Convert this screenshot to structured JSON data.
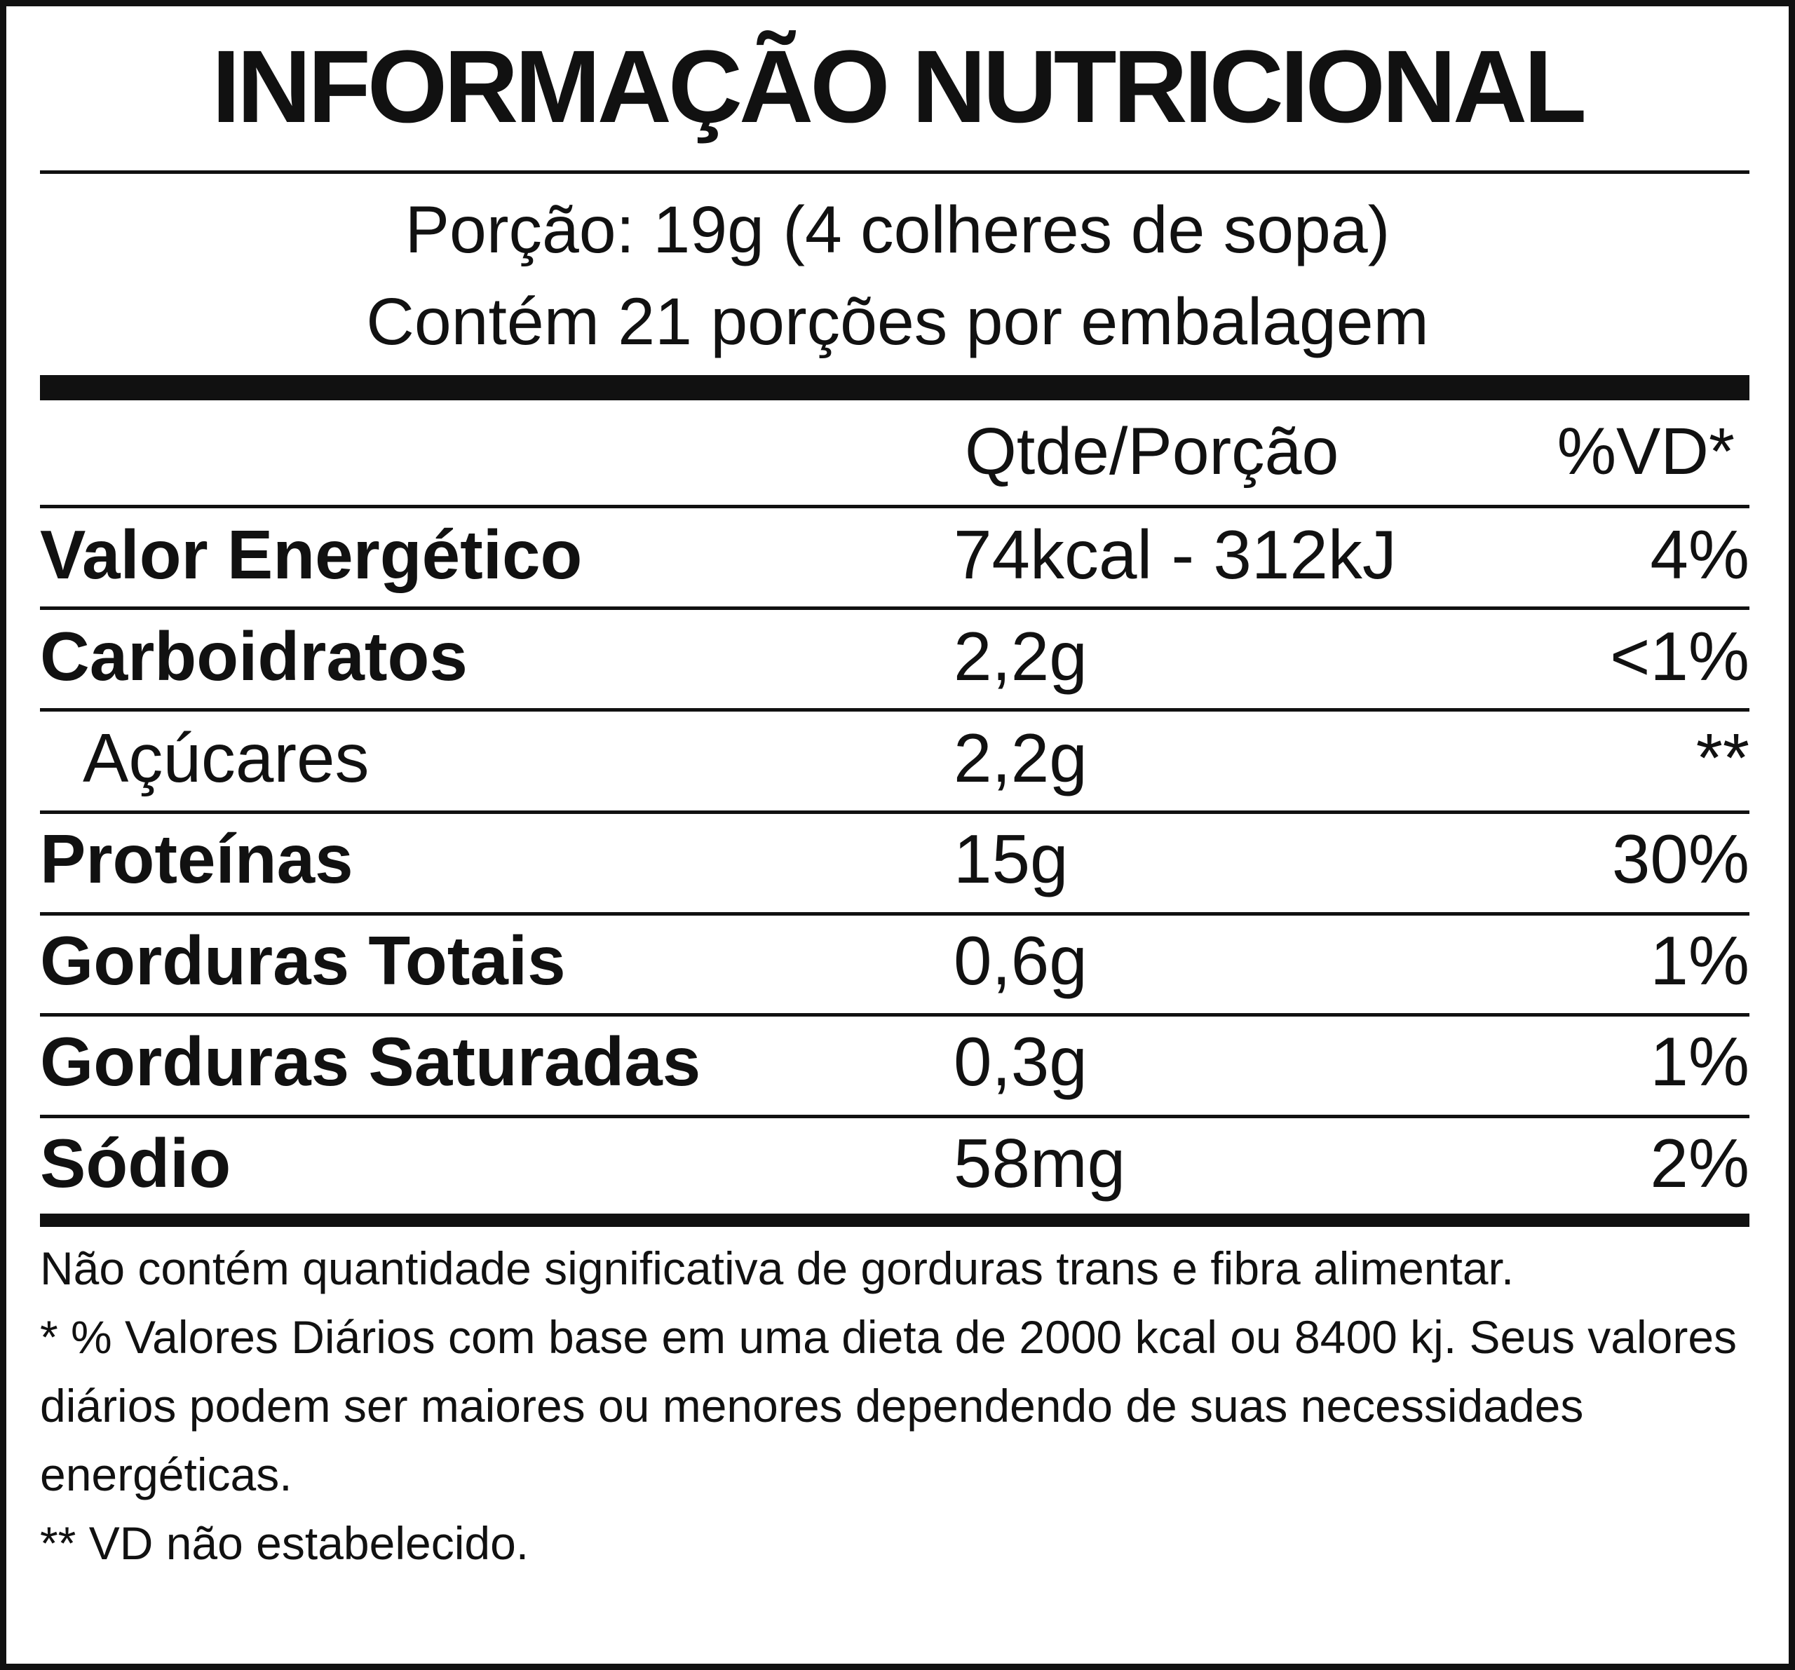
{
  "title": "INFORMAÇÃO NUTRICIONAL",
  "serving": {
    "portion": "Porção: 19g (4 colheres de sopa)",
    "servings": "Contém 21 porções por embalagem"
  },
  "table": {
    "headers": [
      "Qtde/Porção",
      "%VD*"
    ],
    "rows": [
      [
        "Valor Energético",
        "74kcal - 312kJ",
        "4%"
      ],
      [
        "Carboidratos",
        "2,2g",
        "<1%"
      ],
      [
        "Açúcares",
        "2,2g",
        "**"
      ],
      [
        "Proteínas",
        "15g",
        "30%"
      ],
      [
        "Gorduras Totais",
        "0,6g",
        "1%"
      ],
      [
        "Gorduras Saturadas",
        "0,3g",
        "1%"
      ],
      [
        "Sódio",
        "58mg",
        "2%"
      ]
    ]
  },
  "footnotes": [
    "Não contém quantidade significativa de gorduras trans e fibra alimentar.",
    "* % Valores Diários com base em uma dieta de 2000 kcal ou 8400 kj. Seus valores diários podem ser maiores ou menores dependendo de suas necessidades energéticas.",
    "** VD não estabelecido."
  ]
}
